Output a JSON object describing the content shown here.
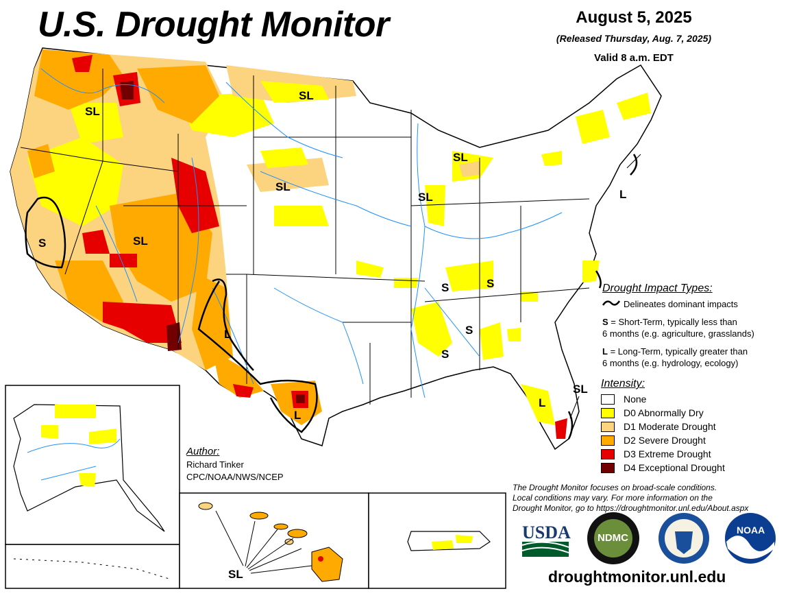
{
  "header": {
    "title": "U.S. Drought Monitor",
    "date": "August 5, 2025",
    "released": "(Released Thursday, Aug. 7, 2025)",
    "valid": "Valid 8 a.m. EDT"
  },
  "impact_types": {
    "title": "Drought Impact Types:",
    "delineates": "Delineates dominant impacts",
    "short_key": "S",
    "short_text_1": " = Short-Term, typically less than",
    "short_text_2": "6 months (e.g. agriculture, grasslands)",
    "long_key": "L",
    "long_text_1": " = Long-Term, typically greater than",
    "long_text_2": "6 months (e.g. hydrology, ecology)"
  },
  "intensity": {
    "title": "Intensity:",
    "items": [
      {
        "label": "None",
        "color": "#ffffff"
      },
      {
        "label": "D0 Abnormally Dry",
        "color": "#ffff00"
      },
      {
        "label": "D1 Moderate Drought",
        "color": "#fcd37f"
      },
      {
        "label": "D2 Severe Drought",
        "color": "#ffaa00"
      },
      {
        "label": "D3 Extreme Drought",
        "color": "#e60000"
      },
      {
        "label": "D4 Exceptional Drought",
        "color": "#730000"
      }
    ]
  },
  "author": {
    "label": "Author:",
    "name": "Richard Tinker",
    "org": "CPC/NOAA/NWS/NCEP"
  },
  "note": {
    "line1": "The Drought Monitor focuses on broad-scale conditions.",
    "line2": "Local conditions may vary. For more information on the",
    "line3": "Drought Monitor, go to https://droughtmonitor.unl.edu/About.aspx"
  },
  "map_labels": {
    "sl_pnw": "SL",
    "sl_mt": "SL",
    "sl_ut": "SL",
    "sl_sd": "SL",
    "sl_mi": "SL",
    "sl_il": "SL",
    "sl_fl": "SL",
    "sl_hi": "SL",
    "s_ca": "S",
    "s_ky": "S",
    "s_tn": "S",
    "s_al": "S",
    "s_ms": "S",
    "l_nm": "L",
    "l_tx": "L",
    "l_fl": "L",
    "l_ne": "L"
  },
  "logos": {
    "usda": "USDA",
    "ndmc": "NDMC",
    "noaa": "NOAA"
  },
  "website": "droughtmonitor.unl.edu"
}
